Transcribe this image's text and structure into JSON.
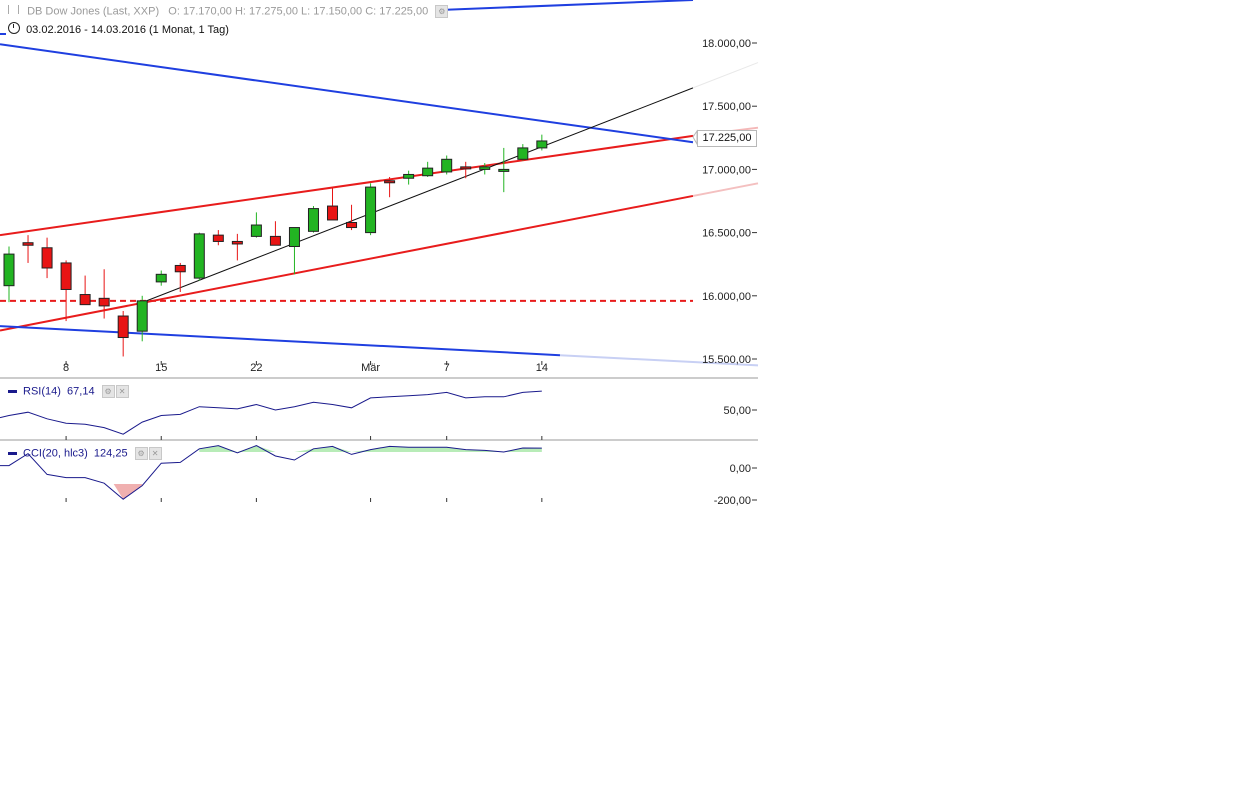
{
  "header": {
    "instrument": "DB Dow Jones (Last, XXP)",
    "ohlc": "O: 17.170,00  H: 17.275,00  L: 17.150,00  C: 17.225,00",
    "range": "03.02.2016 - 14.03.2016 (1 Monat, 1 Tag)"
  },
  "rsi_legend": {
    "label": "RSI(14)",
    "value": "67,14"
  },
  "cci_legend": {
    "label": "CCI(20, hlc3)",
    "value": "124,25"
  },
  "last_price_label": "17.225,00",
  "colors": {
    "up": "#22b422",
    "down": "#e81414",
    "trend_blue": "#1f3fe0",
    "trend_red": "#e81c1c",
    "trend_black": "#111111",
    "indicator": "#1a1a8c",
    "cci_positive_fill": "#b8ecb8",
    "cci_negative_fill": "#f0b0b0"
  },
  "chart_data": [
    {
      "type": "candlestick",
      "title": "",
      "x_tick_labels": [
        "8",
        "15",
        "22",
        "Mär",
        "7",
        "14"
      ],
      "y_tick_labels": [
        "18.000,00",
        "17.500,00",
        "17.000,00",
        "16.500,00",
        "16.000,00",
        "15.500,00"
      ],
      "ylim": [
        15400,
        18100
      ],
      "grid": false,
      "candles": [
        {
          "o": 16080,
          "h": 16390,
          "l": 15950,
          "c": 16330
        },
        {
          "o": 16420,
          "h": 16480,
          "l": 16260,
          "c": 16400
        },
        {
          "o": 16380,
          "h": 16460,
          "l": 16140,
          "c": 16220
        },
        {
          "o": 16260,
          "h": 16280,
          "l": 15800,
          "c": 16050
        },
        {
          "o": 16010,
          "h": 16160,
          "l": 15940,
          "c": 15930
        },
        {
          "o": 15980,
          "h": 16210,
          "l": 15820,
          "c": 15920
        },
        {
          "o": 15840,
          "h": 15880,
          "l": 15520,
          "c": 15670
        },
        {
          "o": 15720,
          "h": 16000,
          "l": 15640,
          "c": 15960
        },
        {
          "o": 16110,
          "h": 16200,
          "l": 16080,
          "c": 16170
        },
        {
          "o": 16240,
          "h": 16260,
          "l": 16030,
          "c": 16190
        },
        {
          "o": 16140,
          "h": 16500,
          "l": 16120,
          "c": 16490
        },
        {
          "o": 16480,
          "h": 16520,
          "l": 16400,
          "c": 16430
        },
        {
          "o": 16430,
          "h": 16490,
          "l": 16280,
          "c": 16410
        },
        {
          "o": 16470,
          "h": 16660,
          "l": 16460,
          "c": 16560
        },
        {
          "o": 16470,
          "h": 16590,
          "l": 16400,
          "c": 16400
        },
        {
          "o": 16390,
          "h": 16540,
          "l": 16170,
          "c": 16540
        },
        {
          "o": 16510,
          "h": 16710,
          "l": 16500,
          "c": 16690
        },
        {
          "o": 16710,
          "h": 16850,
          "l": 16600,
          "c": 16600
        },
        {
          "o": 16580,
          "h": 16720,
          "l": 16520,
          "c": 16540
        },
        {
          "o": 16500,
          "h": 16890,
          "l": 16480,
          "c": 16860
        },
        {
          "o": 16910,
          "h": 16940,
          "l": 16780,
          "c": 16900
        },
        {
          "o": 16930,
          "h": 16990,
          "l": 16880,
          "c": 16960
        },
        {
          "o": 16950,
          "h": 17060,
          "l": 16940,
          "c": 17010
        },
        {
          "o": 16980,
          "h": 17110,
          "l": 16960,
          "c": 17080
        },
        {
          "o": 17020,
          "h": 17060,
          "l": 16930,
          "c": 17010
        },
        {
          "o": 17000,
          "h": 17050,
          "l": 16960,
          "c": 17020
        },
        {
          "o": 17000,
          "h": 17170,
          "l": 16820,
          "c": 17000
        },
        {
          "o": 17080,
          "h": 17200,
          "l": 17070,
          "c": 17170
        },
        {
          "o": 17170,
          "h": 17275,
          "l": 17150,
          "c": 17225
        }
      ],
      "reference_lines": [
        {
          "style": "dashed",
          "color": "#e81c1c",
          "value": 15960
        }
      ]
    },
    {
      "type": "line",
      "title": "RSI(14)",
      "ylim": [
        25,
        75
      ],
      "y_tick_labels": [
        "50,00"
      ],
      "series": [
        {
          "name": "RSI(14)",
          "values": [
            45,
            48,
            42,
            38,
            37,
            34,
            28,
            39,
            45,
            46,
            53,
            52,
            51,
            55,
            50,
            53,
            57,
            55,
            52,
            61,
            62,
            63,
            64,
            66,
            61,
            62,
            62,
            66,
            67.14
          ]
        }
      ]
    },
    {
      "type": "area",
      "title": "CCI(20, hlc3)",
      "ylim": [
        -220,
        180
      ],
      "y_tick_labels": [
        "0,00",
        "-200,00"
      ],
      "series": [
        {
          "name": "CCI(20, hlc3)",
          "values": [
            15,
            90,
            -40,
            -60,
            -60,
            -95,
            -195,
            -110,
            30,
            35,
            120,
            140,
            95,
            140,
            75,
            50,
            120,
            135,
            85,
            115,
            135,
            130,
            130,
            130,
            115,
            110,
            100,
            125,
            124.25
          ]
        }
      ]
    }
  ]
}
